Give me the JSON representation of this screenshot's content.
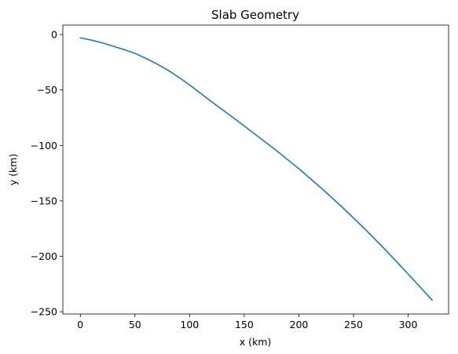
{
  "chart_data": {
    "type": "line",
    "title": "Slab Geometry",
    "xlabel": "x (km)",
    "ylabel": "y (km)",
    "xlim": [
      -16,
      337
    ],
    "ylim": [
      -252,
      8.5
    ],
    "xticks": [
      0,
      50,
      100,
      150,
      200,
      250,
      300
    ],
    "yticks": [
      0,
      -50,
      -100,
      -150,
      -200,
      -250
    ],
    "xtick_labels": [
      "0",
      "50",
      "100",
      "150",
      "200",
      "250",
      "300"
    ],
    "ytick_labels": [
      "0",
      "−50",
      "−100",
      "−150",
      "−200",
      "−250"
    ],
    "grid": false,
    "series": [
      {
        "color": "#1f77b4",
        "x": [
          0,
          10,
          20,
          30,
          40,
          50,
          60,
          70,
          80,
          90,
          100,
          120,
          140,
          160,
          180,
          200,
          220,
          240,
          260,
          280,
          300,
          322
        ],
        "y": [
          -3,
          -5,
          -7.5,
          -10.5,
          -13.5,
          -17,
          -21.5,
          -26.5,
          -32,
          -38.5,
          -45.5,
          -60.5,
          -75,
          -90,
          -105,
          -121,
          -138,
          -156,
          -175,
          -195,
          -216,
          -239.5
        ]
      }
    ]
  }
}
